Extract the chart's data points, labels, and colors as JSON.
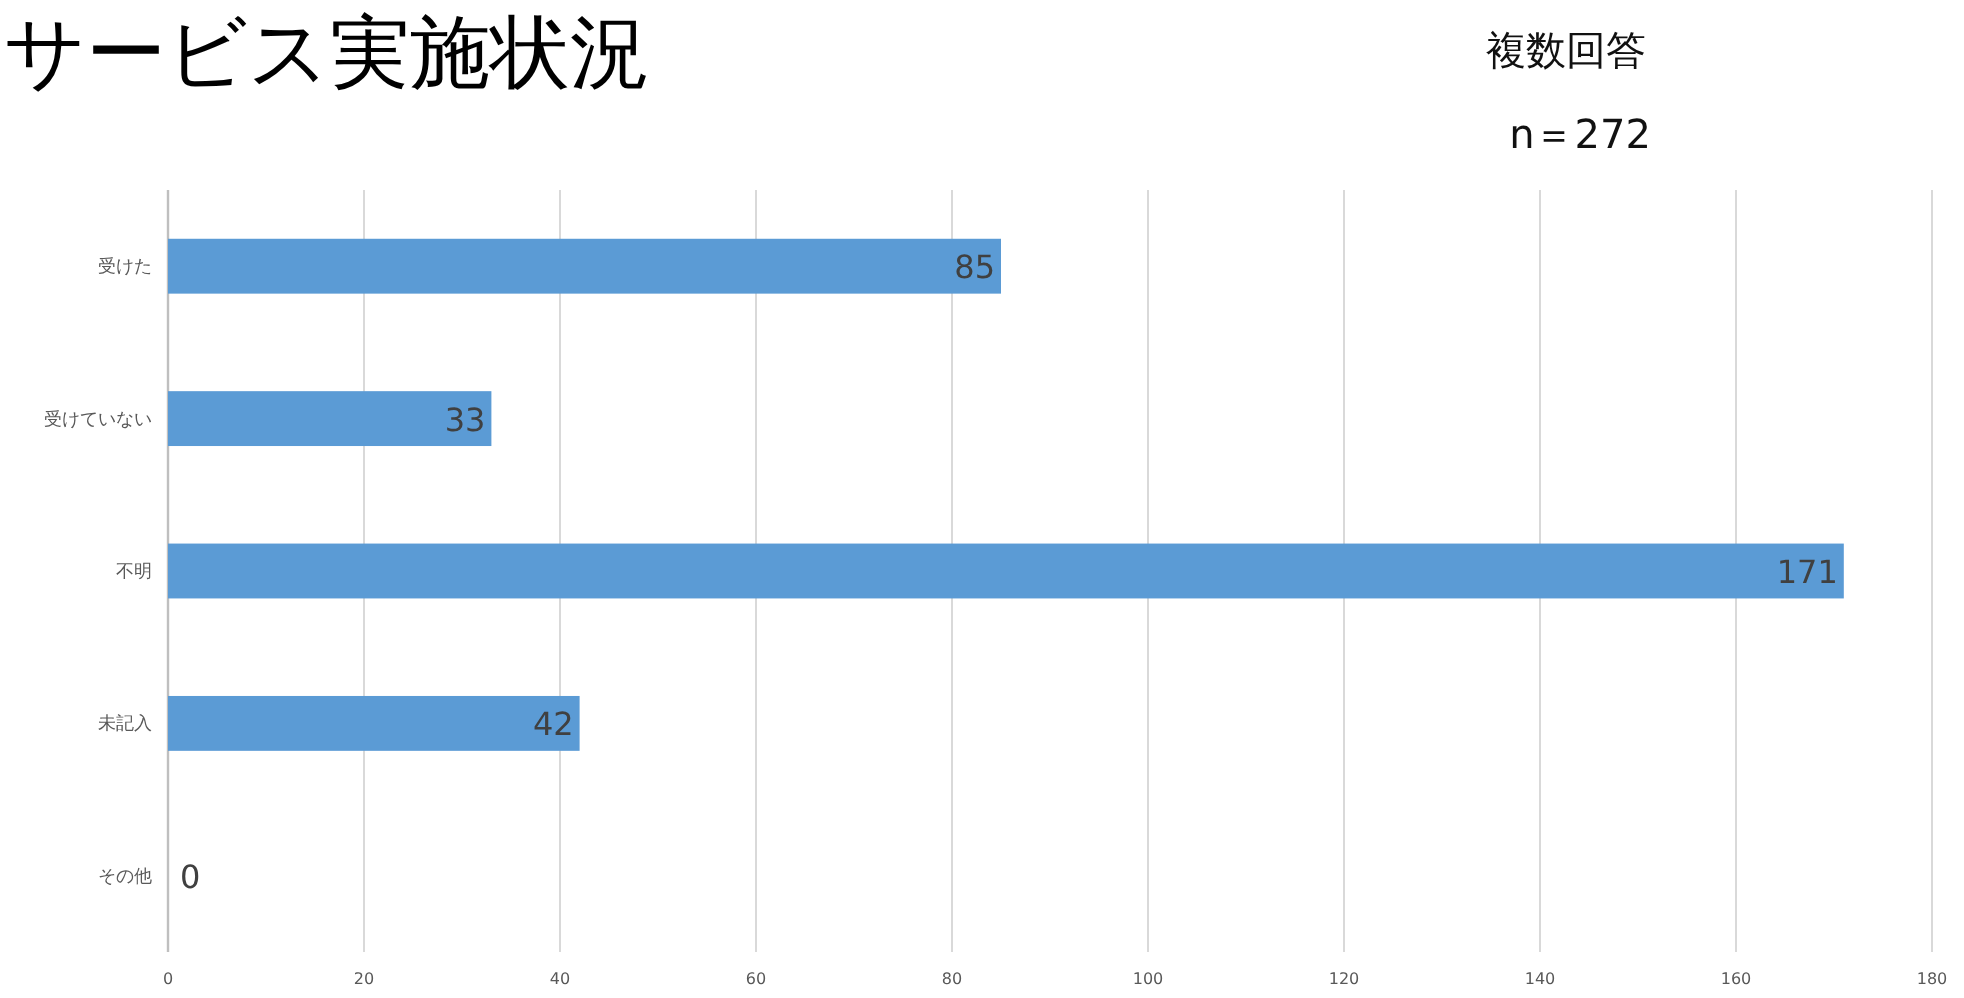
{
  "chart_data": {
    "type": "bar",
    "orientation": "horizontal",
    "title": "サービス実施状況",
    "annotations": [
      "複数回答",
      "n＝272"
    ],
    "categories": [
      "受けた",
      "受けていない",
      "不明",
      "未記入",
      "その他"
    ],
    "values": [
      85,
      33,
      171,
      42,
      0
    ],
    "color": "#5b9bd5",
    "data_labels": true,
    "xlim": [
      0,
      180
    ],
    "xticks": [
      0,
      20,
      40,
      60,
      80,
      100,
      120,
      140,
      160,
      180
    ],
    "grid": "x"
  }
}
